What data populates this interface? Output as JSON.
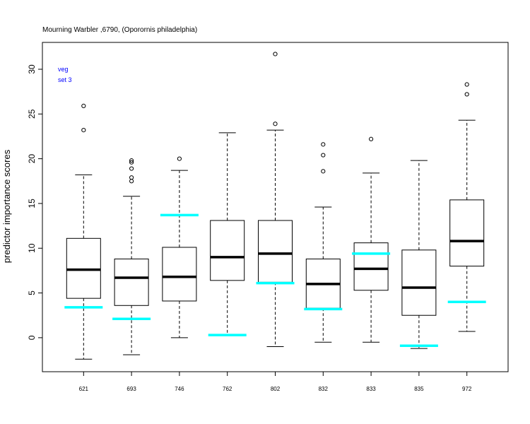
{
  "chart_data": {
    "type": "boxplot",
    "title": "Mourning Warbler ,6790, (Oporornis philadelphia)",
    "xlabel": "",
    "ylabel": "predictor importance scores",
    "annotations": [
      "veg",
      "set 3"
    ],
    "annotation_color": "#0000ff",
    "reference_color": "#00ffff",
    "ylim": [
      -3.8,
      33
    ],
    "yticks": [
      0,
      5,
      10,
      15,
      20,
      25,
      30
    ],
    "grid": false,
    "categories": [
      "621",
      "693",
      "746",
      "762",
      "802",
      "832",
      "833",
      "835",
      "972"
    ],
    "boxes": [
      {
        "whisker_low": -2.4,
        "q1": 4.4,
        "median": 7.6,
        "q3": 11.1,
        "whisker_high": 18.2,
        "outliers": [
          23.2,
          25.9
        ],
        "reference": 3.4
      },
      {
        "whisker_low": -1.9,
        "q1": 3.6,
        "median": 6.7,
        "q3": 8.8,
        "whisker_high": 15.8,
        "outliers": [
          17.5,
          17.9,
          18.9,
          19.6,
          19.8
        ],
        "reference": 2.1
      },
      {
        "whisker_low": 0.0,
        "q1": 4.1,
        "median": 6.8,
        "q3": 10.1,
        "whisker_high": 18.7,
        "outliers": [
          20.0
        ],
        "reference": 13.7
      },
      {
        "whisker_low": 0.3,
        "q1": 6.4,
        "median": 9.0,
        "q3": 13.1,
        "whisker_high": 22.9,
        "outliers": [],
        "reference": 0.3
      },
      {
        "whisker_low": -1.0,
        "q1": 6.2,
        "median": 9.4,
        "q3": 13.1,
        "whisker_high": 23.2,
        "outliers": [
          23.9,
          31.7
        ],
        "reference": 6.1
      },
      {
        "whisker_low": -0.5,
        "q1": 3.3,
        "median": 6.0,
        "q3": 8.8,
        "whisker_high": 14.6,
        "outliers": [
          18.6,
          20.4,
          21.6
        ],
        "reference": 3.2
      },
      {
        "whisker_low": -0.5,
        "q1": 5.3,
        "median": 7.7,
        "q3": 10.6,
        "whisker_high": 18.4,
        "outliers": [
          22.2
        ],
        "reference": 9.4
      },
      {
        "whisker_low": -1.2,
        "q1": 2.5,
        "median": 5.6,
        "q3": 9.8,
        "whisker_high": 19.8,
        "outliers": [],
        "reference": -0.9
      },
      {
        "whisker_low": 0.7,
        "q1": 8.0,
        "median": 10.8,
        "q3": 15.4,
        "whisker_high": 24.3,
        "outliers": [
          27.2,
          28.3
        ],
        "reference": 4.0
      }
    ]
  }
}
